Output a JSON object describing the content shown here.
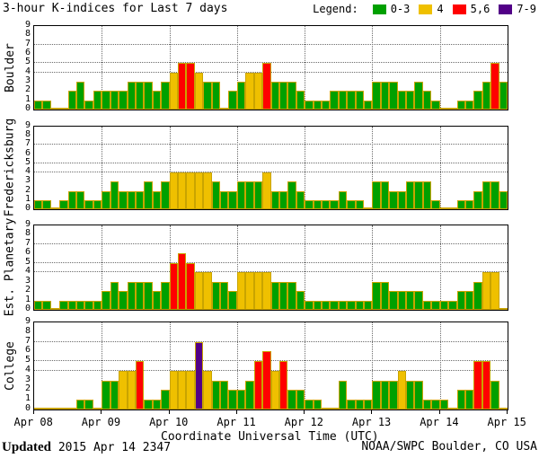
{
  "title": "3-hour K-indices for Last 7 days",
  "legend": {
    "label": "Legend:",
    "items": [
      {
        "label": "0-3",
        "color": "#00a000"
      },
      {
        "label": "4",
        "color": "#efc000"
      },
      {
        "label": "5,6",
        "color": "#ff0000"
      },
      {
        "label": "7-9",
        "color": "#520087"
      }
    ]
  },
  "xlabel": "Coordinate Universal Time (UTC)",
  "footer": {
    "updated_label": "Updated",
    "updated_value": "2015 Apr 14 2347",
    "credit": "NOAA/SWPC Boulder, CO USA"
  },
  "chart_data": {
    "type": "bar",
    "description": "3-hour K-index bars, 8 bars per day over 7 days (Apr 08 - Apr 15), one panel per station",
    "x_tick_labels": [
      "Apr 08",
      "Apr 09",
      "Apr 10",
      "Apr 11",
      "Apr 12",
      "Apr 13",
      "Apr 14",
      "Apr 15"
    ],
    "bars_per_day": 8,
    "ylim": [
      0,
      9
    ],
    "y_ticks": [
      0,
      1,
      2,
      3,
      4,
      5,
      6,
      7,
      8,
      9
    ],
    "threshold_gridlines": [
      4,
      5,
      7
    ],
    "grid": "vertical dotted lines at each day boundary, horizontal dotted lines at K=4,5,7",
    "color_scale": {
      "0-3": "#00a000",
      "4": "#efc000",
      "5-6": "#ff0000",
      "7-9": "#520087"
    },
    "bar_outline_color": "#c9a400",
    "series": [
      {
        "name": "Boulder",
        "values": [
          1,
          1,
          0,
          0,
          2,
          3,
          1,
          2,
          2,
          2,
          2,
          3,
          3,
          3,
          2,
          3,
          4,
          5,
          5,
          4,
          3,
          3,
          0,
          2,
          3,
          4,
          4,
          5,
          3,
          3,
          3,
          2,
          1,
          1,
          1,
          2,
          2,
          2,
          2,
          1,
          3,
          3,
          3,
          2,
          2,
          3,
          2,
          1,
          0,
          0,
          1,
          1,
          2,
          3,
          5,
          3
        ]
      },
      {
        "name": "Fredericksburg",
        "values": [
          1,
          1,
          0,
          1,
          2,
          2,
          1,
          1,
          2,
          3,
          2,
          2,
          2,
          3,
          2,
          3,
          4,
          4,
          4,
          4,
          4,
          3,
          2,
          2,
          3,
          3,
          3,
          4,
          2,
          2,
          3,
          2,
          1,
          1,
          1,
          1,
          2,
          1,
          1,
          0,
          3,
          3,
          2,
          2,
          3,
          3,
          3,
          1,
          0,
          0,
          1,
          1,
          2,
          3,
          3,
          2
        ]
      },
      {
        "name": "Est. Planetary",
        "values": [
          1,
          1,
          0,
          1,
          1,
          1,
          1,
          1,
          2,
          3,
          2,
          3,
          3,
          3,
          2,
          3,
          5,
          6,
          5,
          4,
          4,
          3,
          3,
          2,
          4,
          4,
          4,
          4,
          3,
          3,
          3,
          2,
          1,
          1,
          1,
          1,
          1,
          1,
          1,
          1,
          3,
          3,
          2,
          2,
          2,
          2,
          1,
          1,
          1,
          1,
          2,
          2,
          3,
          4,
          4,
          0
        ]
      },
      {
        "name": "College",
        "values": [
          0,
          0,
          0,
          0,
          0,
          1,
          1,
          0,
          3,
          3,
          4,
          4,
          5,
          1,
          1,
          2,
          4,
          4,
          4,
          7,
          4,
          3,
          3,
          2,
          2,
          3,
          5,
          6,
          4,
          5,
          2,
          2,
          1,
          1,
          0,
          0,
          3,
          1,
          1,
          1,
          3,
          3,
          3,
          4,
          3,
          3,
          1,
          1,
          1,
          0,
          2,
          2,
          5,
          5,
          3,
          0
        ]
      }
    ]
  }
}
